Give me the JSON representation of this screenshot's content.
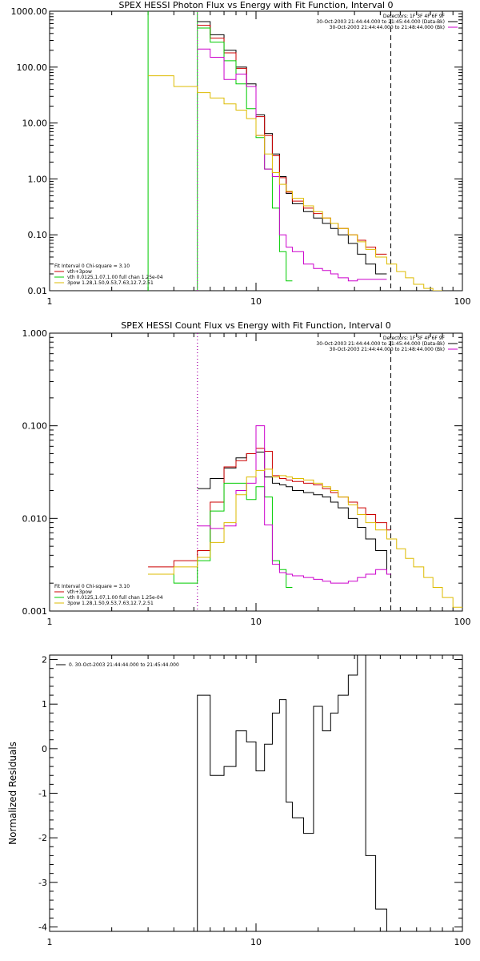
{
  "chart_data": [
    {
      "type": "line",
      "title": "SPEX HESSI Photon Flux vs Energy with Fit Function, Interval 0",
      "xscale": "log",
      "yscale": "log",
      "xlim": [
        1,
        100
      ],
      "ylim": [
        0.01,
        1000
      ],
      "xticks": [
        1,
        10,
        100
      ],
      "xtick_labels": [
        "1",
        "10",
        "100"
      ],
      "yticks": [
        0.01,
        0.1,
        1,
        10,
        100,
        1000
      ],
      "ytick_labels": [
        "0.01",
        "0.10",
        "1.00",
        "10.00",
        "100.00",
        "1000.00"
      ],
      "ylabel": "",
      "vlines": [
        {
          "x": 3,
          "color": "#00cc00",
          "style": "solid"
        },
        {
          "x": 5.2,
          "color": "#00cc00",
          "style": "solid"
        },
        {
          "x": 5.2,
          "color": "#cc00cc",
          "style": "dotted"
        },
        {
          "x": 45,
          "color": "#000000",
          "style": "dashed"
        }
      ],
      "legend_top": {
        "placement": "top-right",
        "lines": [
          {
            "text": "Detectors: 1F 3F 4F 6F 9F",
            "color": ""
          },
          {
            "text": "30-Oct-2003 21:44:44.000 to 21:45:44.000 (Data-Bk)",
            "color": "#000000"
          },
          {
            "text": "30-Oct-2003 21:44:44.000 to 21:48:44.000 (Bk)",
            "color": "#cc00cc"
          }
        ]
      },
      "legend_bottom": {
        "placement": "bottom-left",
        "lines": [
          {
            "text": "Fit Interval 0   Chi-square = 3.10",
            "color": ""
          },
          {
            "text": "vth+3pow",
            "color": "#cc0000"
          },
          {
            "text": "vth 0.0125,1.07,1.00  full chan 1.25e-04",
            "color": "#00cc00"
          },
          {
            "text": "3pow 1.28,1.50,9.53,7.63,12.7,2.51",
            "color": "#ddbb00"
          }
        ]
      },
      "series": [
        {
          "color": "#000000",
          "edges": [
            5.2,
            6,
            7,
            8,
            9,
            10,
            11,
            12,
            13,
            14,
            15,
            17,
            19,
            21,
            23,
            25,
            28,
            31,
            34,
            38,
            43
          ],
          "values": [
            650,
            380,
            200,
            100,
            50,
            14,
            6.5,
            2.8,
            1.1,
            0.55,
            0.36,
            0.26,
            0.2,
            0.16,
            0.13,
            0.1,
            0.07,
            0.045,
            0.03,
            0.02
          ]
        },
        {
          "color": "#cc0000",
          "edges": [
            5.2,
            6,
            7,
            8,
            9,
            10,
            11,
            12,
            13,
            14,
            15,
            17,
            19,
            21,
            23,
            25,
            28,
            31,
            34,
            38,
            43
          ],
          "values": [
            560,
            330,
            180,
            95,
            45,
            13,
            6,
            2.6,
            1.05,
            0.58,
            0.4,
            0.3,
            0.24,
            0.2,
            0.16,
            0.13,
            0.1,
            0.08,
            0.06,
            0.045
          ]
        },
        {
          "color": "#00cc00",
          "edges": [
            5.2,
            6,
            7,
            8,
            9,
            10,
            11,
            12,
            13,
            14,
            15
          ],
          "values": [
            500,
            280,
            130,
            50,
            18,
            5.5,
            1.5,
            0.3,
            0.05,
            0.015
          ]
        },
        {
          "color": "#cc00cc",
          "edges": [
            5.2,
            6,
            7,
            8,
            9,
            10,
            11,
            12,
            13,
            14,
            15,
            17,
            19,
            21,
            23,
            25,
            28,
            31,
            34,
            38,
            43
          ],
          "values": [
            210,
            150,
            60,
            75,
            45,
            6,
            1.5,
            1.1,
            0.1,
            0.06,
            0.05,
            0.03,
            0.025,
            0.023,
            0.02,
            0.017,
            0.015,
            0.016,
            0.016,
            0.016
          ]
        },
        {
          "color": "#ddbb00",
          "edges": [
            3,
            4,
            5.2,
            6,
            7,
            8,
            9,
            10,
            11,
            12,
            13,
            14,
            15,
            17,
            19,
            21,
            23,
            25,
            28,
            31,
            34,
            38,
            43,
            48,
            53,
            58,
            65,
            72,
            80
          ],
          "values": [
            70,
            45,
            35,
            28,
            22,
            17,
            12,
            6,
            2.8,
            1.3,
            0.8,
            0.6,
            0.45,
            0.33,
            0.26,
            0.2,
            0.16,
            0.13,
            0.1,
            0.075,
            0.055,
            0.04,
            0.03,
            0.022,
            0.017,
            0.013,
            0.011,
            0.01
          ]
        }
      ]
    },
    {
      "type": "line",
      "title": "SPEX HESSI Count Flux vs Energy with Fit Function, Interval 0",
      "xscale": "log",
      "yscale": "log",
      "xlim": [
        1,
        100
      ],
      "ylim": [
        0.001,
        1
      ],
      "xticks": [
        1,
        10,
        100
      ],
      "xtick_labels": [
        "1",
        "10",
        "100"
      ],
      "yticks": [
        0.001,
        0.01,
        0.1,
        1
      ],
      "ytick_labels": [
        "0.001",
        "0.010",
        "0.100",
        "1.000"
      ],
      "ylabel": "",
      "vlines": [
        {
          "x": 5.2,
          "color": "#000000",
          "style": "dotted"
        },
        {
          "x": 5.2,
          "color": "#cc00cc",
          "style": "dotted"
        },
        {
          "x": 45,
          "color": "#000000",
          "style": "dashed"
        }
      ],
      "legend_top": {
        "placement": "top-right",
        "lines": [
          {
            "text": "Detectors: 1F 3F 4F 6F 9F",
            "color": ""
          },
          {
            "text": "30-Oct-2003 21:44:44.000 to 21:45:44.000 (Data-Bk)",
            "color": "#000000"
          },
          {
            "text": "30-Oct-2003 21:44:44.000 to 21:48:44.000 (Bk)",
            "color": "#cc00cc"
          }
        ]
      },
      "legend_bottom": {
        "placement": "bottom-left",
        "lines": [
          {
            "text": "Fit Interval 0   Chi-square = 3.10",
            "color": ""
          },
          {
            "text": "vth+3pow",
            "color": "#cc0000"
          },
          {
            "text": "vth 0.0125,1.07,1.00  full chan 1.25e-04",
            "color": "#00cc00"
          },
          {
            "text": "3pow 1.28,1.50,9.53,7.63,12.7,2.51",
            "color": "#ddbb00"
          }
        ]
      },
      "series": [
        {
          "color": "#000000",
          "edges": [
            5.2,
            6,
            7,
            8,
            9,
            10,
            11,
            12,
            13,
            14,
            15,
            17,
            19,
            21,
            23,
            25,
            28,
            31,
            34,
            38,
            43,
            45
          ],
          "values": [
            0.021,
            0.027,
            0.035,
            0.045,
            0.05,
            0.052,
            0.028,
            0.024,
            0.023,
            0.022,
            0.02,
            0.019,
            0.018,
            0.017,
            0.015,
            0.013,
            0.01,
            0.008,
            0.006,
            0.0045,
            0.0025
          ]
        },
        {
          "color": "#cc0000",
          "edges": [
            3,
            4,
            5.2,
            6,
            7,
            8,
            9,
            10,
            11,
            12,
            13,
            14,
            15,
            17,
            19,
            21,
            23,
            25,
            28,
            31,
            34,
            38,
            43,
            45
          ],
          "values": [
            0.003,
            0.0035,
            0.0045,
            0.015,
            0.036,
            0.042,
            0.05,
            0.057,
            0.053,
            0.029,
            0.027,
            0.026,
            0.025,
            0.024,
            0.023,
            0.021,
            0.019,
            0.017,
            0.015,
            0.013,
            0.011,
            0.009,
            0.0075
          ]
        },
        {
          "color": "#00cc00",
          "edges": [
            3,
            4,
            5.2,
            6,
            7,
            8,
            9,
            10,
            11,
            12,
            13,
            14,
            15
          ],
          "values": [
            0.0025,
            0.002,
            0.0035,
            0.012,
            0.024,
            0.024,
            0.016,
            0.022,
            0.017,
            0.0035,
            0.0028,
            0.0018
          ]
        },
        {
          "color": "#cc00cc",
          "edges": [
            5.2,
            6,
            7,
            8,
            9,
            10,
            11,
            12,
            13,
            14,
            15,
            17,
            19,
            21,
            23,
            25,
            28,
            31,
            34,
            38,
            43,
            45
          ],
          "values": [
            0.0083,
            0.0078,
            0.0083,
            0.02,
            0.024,
            0.1,
            0.0085,
            0.0032,
            0.0026,
            0.0025,
            0.0024,
            0.0023,
            0.0022,
            0.0021,
            0.002,
            0.002,
            0.0021,
            0.0023,
            0.0025,
            0.0028,
            0.0025
          ]
        },
        {
          "color": "#ddbb00",
          "edges": [
            3,
            4,
            5.2,
            6,
            7,
            8,
            9,
            10,
            11,
            12,
            13,
            14,
            15,
            17,
            19,
            21,
            23,
            25,
            28,
            31,
            34,
            38,
            43,
            48,
            53,
            58,
            65,
            72,
            80,
            90,
            100
          ],
          "values": [
            0.0025,
            0.003,
            0.0038,
            0.0055,
            0.009,
            0.018,
            0.028,
            0.033,
            0.034,
            0.028,
            0.029,
            0.028,
            0.027,
            0.026,
            0.024,
            0.022,
            0.02,
            0.017,
            0.014,
            0.011,
            0.009,
            0.0075,
            0.006,
            0.0047,
            0.0037,
            0.003,
            0.0023,
            0.0018,
            0.0014,
            0.0011
          ]
        }
      ]
    },
    {
      "type": "line",
      "title": "",
      "xscale": "log",
      "yscale": "linear",
      "xlim": [
        1,
        100
      ],
      "ylim": [
        -4.1,
        2.1
      ],
      "xticks": [
        1,
        10,
        100
      ],
      "xtick_labels": [
        "1",
        "10",
        "100"
      ],
      "yticks": [
        -4,
        -3,
        -2,
        -1,
        0,
        1,
        2
      ],
      "ytick_labels": [
        "-4",
        "-3",
        "-2",
        "-1",
        "0",
        "1",
        "2"
      ],
      "ylabel": "Normalized Residuals",
      "legend_top": {
        "placement": "top-left",
        "lines": [
          {
            "text": "0. 30-Oct-2003 21:44:44.000 to 21:45:44.000",
            "color": "#000000"
          }
        ]
      },
      "series": [
        {
          "color": "#000000",
          "edges": [
            5.2,
            6,
            7,
            8,
            9,
            10,
            11,
            12,
            13,
            14,
            15,
            17,
            19,
            21,
            23,
            25,
            28,
            31,
            34,
            38,
            43
          ],
          "values": [
            1.2,
            -0.6,
            -0.4,
            0.4,
            0.15,
            -0.5,
            0.1,
            0.8,
            1.1,
            -1.2,
            -1.55,
            -1.9,
            0.95,
            0.4,
            0.8,
            1.2,
            1.65,
            2.1,
            -2.4,
            -3.6
          ],
          "start_from": -4.1,
          "end_to": -4.1
        }
      ]
    }
  ]
}
